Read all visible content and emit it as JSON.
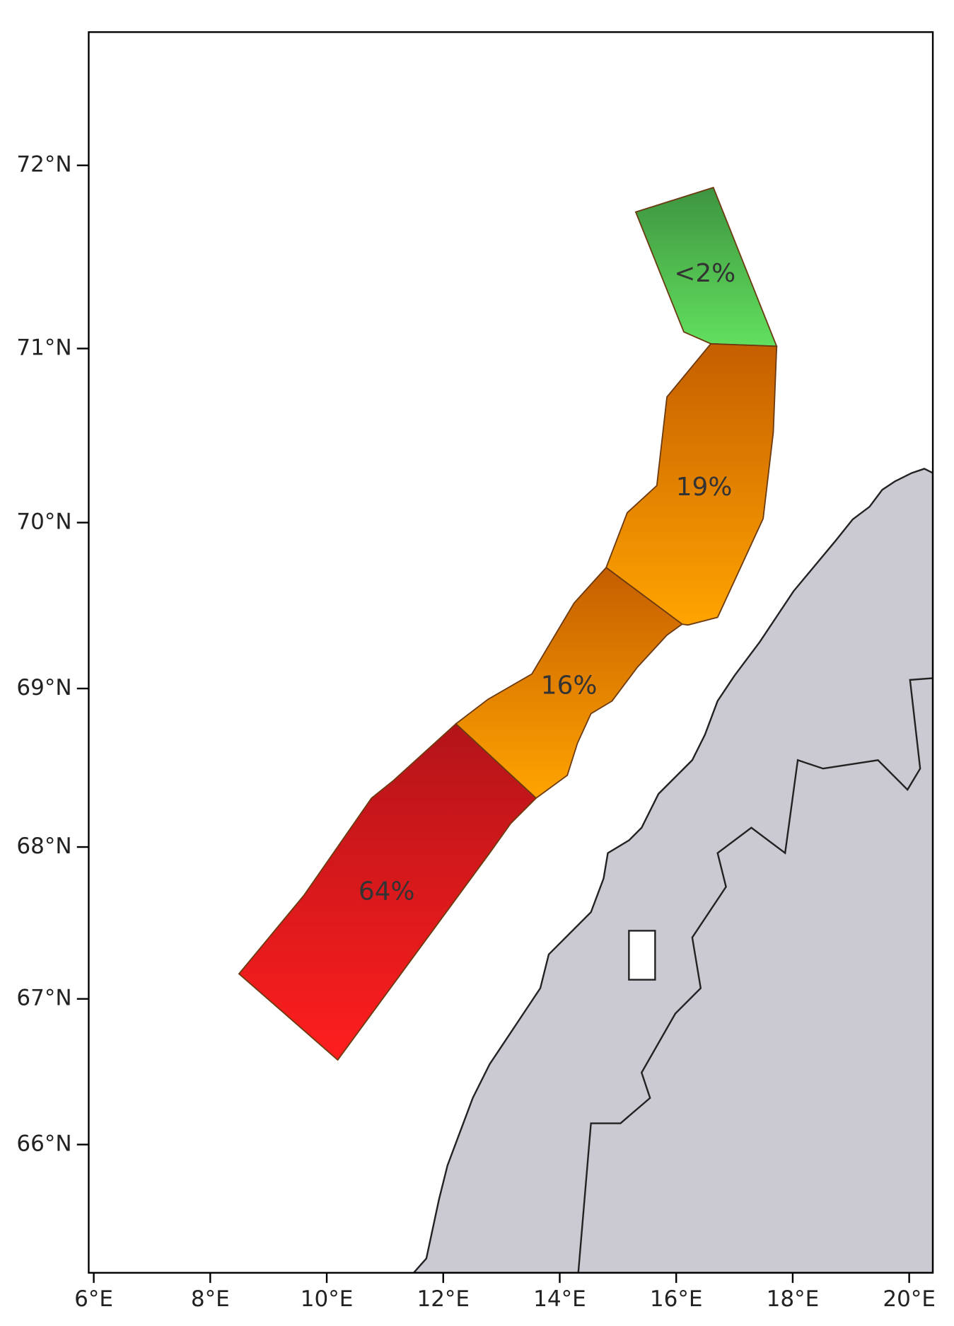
{
  "map": {
    "lat_ticks": [
      {
        "value": 72,
        "label": "72°N"
      },
      {
        "value": 71,
        "label": "71°N"
      },
      {
        "value": 70,
        "label": "70°N"
      },
      {
        "value": 69,
        "label": "69°N"
      },
      {
        "value": 68,
        "label": "68°N"
      },
      {
        "value": 67,
        "label": "67°N"
      },
      {
        "value": 66,
        "label": "66°N"
      }
    ],
    "lon_ticks": [
      {
        "value": 6,
        "label": "6°E"
      },
      {
        "value": 8,
        "label": "8°E"
      },
      {
        "value": 10,
        "label": "10°E"
      },
      {
        "value": 12,
        "label": "12°E"
      },
      {
        "value": 14,
        "label": "14°E"
      },
      {
        "value": 16,
        "label": "16°E"
      },
      {
        "value": 18,
        "label": "18°E"
      },
      {
        "value": 20,
        "label": "20°E"
      }
    ],
    "regions": [
      {
        "label": "<2%",
        "color": "#4caf50"
      },
      {
        "label": "19%",
        "color": "#e08a00"
      },
      {
        "label": "16%",
        "color": "#e08a00"
      },
      {
        "label": "64%",
        "color": "#d81e1e"
      }
    ]
  }
}
